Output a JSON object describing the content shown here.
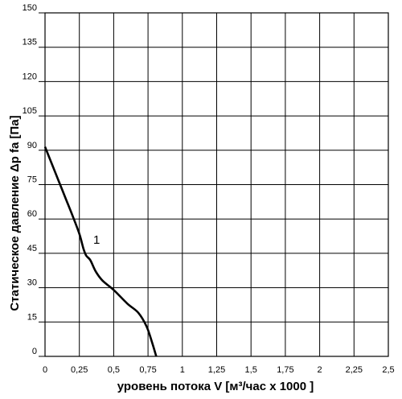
{
  "chart_data": {
    "type": "line",
    "title": "",
    "xlabel": "уровень потока  V [м³/час x 1000 ]",
    "ylabel": "Статическое давление  Δp fa [Па]",
    "xlim": [
      0,
      2.5
    ],
    "ylim": [
      0,
      150
    ],
    "x_ticks": [
      0,
      0.25,
      0.5,
      0.75,
      1,
      1.25,
      1.5,
      1.75,
      2,
      2.25,
      2.5
    ],
    "x_tick_labels": [
      "0",
      "0,25",
      "0,5",
      "0,75",
      "1",
      "1,25",
      "1,5",
      "1,75",
      "2",
      "2,25",
      "2,5"
    ],
    "y_ticks": [
      0,
      15,
      30,
      45,
      60,
      75,
      90,
      105,
      120,
      135,
      150
    ],
    "y_tick_labels": [
      "0",
      "15",
      "30",
      "45",
      "60",
      "75",
      "90",
      "105",
      "120",
      "135",
      "150"
    ],
    "grid": true,
    "series": [
      {
        "name": "1",
        "color": "#000000",
        "x": [
          0,
          0.05,
          0.1,
          0.15,
          0.2,
          0.25,
          0.28,
          0.3,
          0.33,
          0.37,
          0.42,
          0.5,
          0.6,
          0.68,
          0.74,
          0.78,
          0.81
        ],
        "y": [
          91.5,
          84,
          76.5,
          69,
          61.5,
          53.5,
          47,
          44,
          42,
          37,
          33,
          29,
          23,
          19,
          13,
          6,
          0
        ]
      }
    ]
  }
}
